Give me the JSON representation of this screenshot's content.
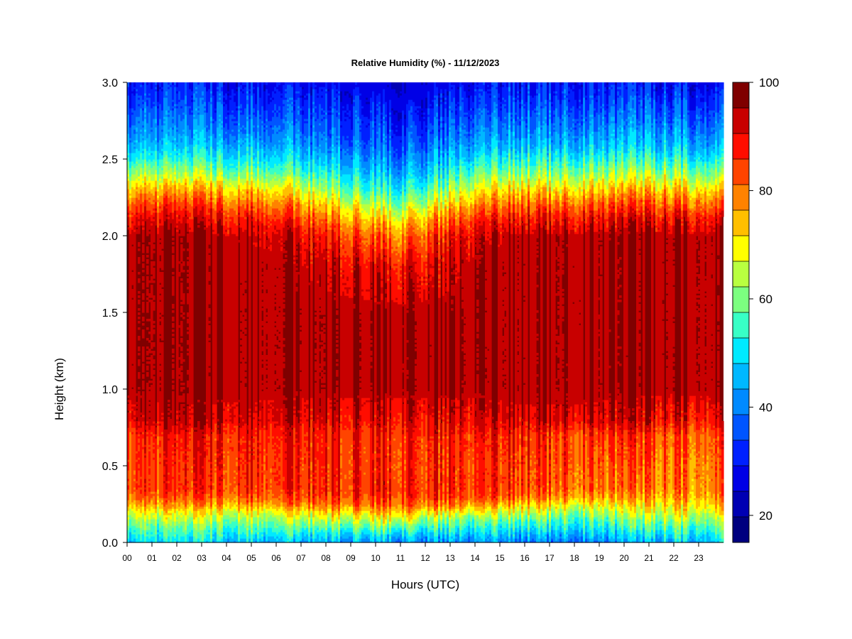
{
  "chart_data": {
    "type": "heatmap",
    "title": "Relative Humidity (%) - 11/12/2023",
    "xlabel": "Hours (UTC)",
    "ylabel": "Height (km)",
    "x_ticks": [
      "00",
      "01",
      "02",
      "03",
      "04",
      "05",
      "06",
      "07",
      "08",
      "09",
      "10",
      "11",
      "12",
      "13",
      "14",
      "15",
      "16",
      "17",
      "18",
      "19",
      "20",
      "21",
      "22",
      "23"
    ],
    "y_ticks": [
      "0.0",
      "0.5",
      "1.0",
      "1.5",
      "2.0",
      "2.5",
      "3.0"
    ],
    "xlim": [
      0,
      24
    ],
    "ylim": [
      0,
      3.0
    ],
    "colorbar": {
      "min": 15,
      "max": 100,
      "step": 5,
      "tick_values": [
        20,
        40,
        60,
        80,
        100
      ],
      "tick_labels": [
        "20",
        "40",
        "60",
        "80",
        "100"
      ],
      "colors": [
        "#00007f",
        "#0000b3",
        "#0000e6",
        "#0020ff",
        "#0055ff",
        "#008aff",
        "#00b8ff",
        "#00eaff",
        "#38ffc6",
        "#7cff80",
        "#b9ff40",
        "#ffff00",
        "#ffbf00",
        "#ff8200",
        "#ff4400",
        "#ff0d00",
        "#c80000",
        "#7f0000"
      ]
    },
    "profile_heights_km": [
      0.0,
      0.05,
      0.1,
      0.15,
      0.2,
      0.25,
      0.3,
      0.35,
      0.5,
      0.7,
      0.8,
      1.0,
      1.5,
      1.8,
      2.0,
      2.1,
      2.2,
      2.3,
      2.4,
      2.5,
      2.6,
      2.7,
      2.8,
      2.9,
      3.0
    ],
    "profiles": [
      {
        "hour": 0,
        "rh": [
          50,
          55,
          60,
          66,
          72,
          80,
          85,
          88,
          88,
          90,
          97,
          100,
          100,
          100,
          100,
          95,
          88,
          78,
          66,
          55,
          47,
          42,
          38,
          34,
          31
        ]
      },
      {
        "hour": 3,
        "rh": [
          50,
          55,
          60,
          66,
          72,
          80,
          86,
          89,
          90,
          92,
          98,
          100,
          100,
          100,
          100,
          95,
          88,
          78,
          66,
          55,
          47,
          42,
          38,
          34,
          31
        ]
      },
      {
        "hour": 6,
        "rh": [
          48,
          54,
          60,
          66,
          73,
          82,
          87,
          90,
          91,
          93,
          97,
          100,
          100,
          100,
          98,
          93,
          85,
          75,
          63,
          53,
          46,
          41,
          37,
          33,
          30
        ]
      },
      {
        "hour": 8,
        "rh": [
          45,
          52,
          60,
          68,
          76,
          84,
          89,
          91,
          91,
          92,
          96,
          100,
          100,
          98,
          92,
          85,
          76,
          66,
          56,
          48,
          42,
          38,
          35,
          32,
          29
        ]
      },
      {
        "hour": 10,
        "rh": [
          45,
          52,
          62,
          70,
          78,
          86,
          90,
          92,
          91,
          92,
          96,
          100,
          100,
          96,
          86,
          78,
          68,
          58,
          50,
          44,
          39,
          36,
          33,
          30,
          27
        ]
      },
      {
        "hour": 11,
        "rh": [
          44,
          52,
          62,
          72,
          80,
          87,
          91,
          92,
          91,
          92,
          96,
          100,
          100,
          95,
          84,
          76,
          65,
          56,
          48,
          42,
          37,
          33,
          30,
          27,
          25
        ]
      },
      {
        "hour": 12,
        "rh": [
          44,
          50,
          58,
          66,
          75,
          85,
          90,
          91,
          91,
          92,
          96,
          100,
          100,
          96,
          88,
          80,
          70,
          60,
          51,
          45,
          40,
          36,
          33,
          30,
          27
        ]
      },
      {
        "hour": 14,
        "rh": [
          44,
          50,
          56,
          62,
          72,
          82,
          88,
          90,
          90,
          92,
          96,
          100,
          100,
          100,
          97,
          91,
          82,
          72,
          62,
          53,
          46,
          41,
          37,
          33,
          30
        ]
      },
      {
        "hour": 16,
        "rh": [
          42,
          48,
          55,
          62,
          70,
          78,
          86,
          89,
          90,
          92,
          98,
          100,
          100,
          100,
          100,
          95,
          87,
          77,
          66,
          56,
          48,
          43,
          39,
          35,
          32
        ]
      },
      {
        "hour": 18,
        "rh": [
          42,
          48,
          54,
          60,
          66,
          74,
          82,
          86,
          88,
          90,
          98,
          100,
          100,
          100,
          100,
          95,
          87,
          77,
          66,
          56,
          48,
          43,
          39,
          35,
          32
        ]
      },
      {
        "hour": 20,
        "rh": [
          44,
          50,
          56,
          62,
          68,
          74,
          80,
          84,
          86,
          90,
          97,
          100,
          100,
          100,
          100,
          96,
          88,
          78,
          67,
          57,
          49,
          44,
          39,
          35,
          31
        ]
      },
      {
        "hour": 22,
        "rh": [
          48,
          54,
          60,
          66,
          72,
          76,
          80,
          83,
          84,
          87,
          94,
          100,
          100,
          100,
          100,
          95,
          87,
          77,
          66,
          56,
          48,
          43,
          38,
          34,
          30
        ]
      },
      {
        "hour": 24,
        "rh": [
          50,
          55,
          60,
          66,
          72,
          78,
          82,
          84,
          86,
          88,
          95,
          100,
          100,
          100,
          100,
          95,
          86,
          76,
          64,
          54,
          46,
          41,
          37,
          33,
          29
        ]
      }
    ]
  }
}
